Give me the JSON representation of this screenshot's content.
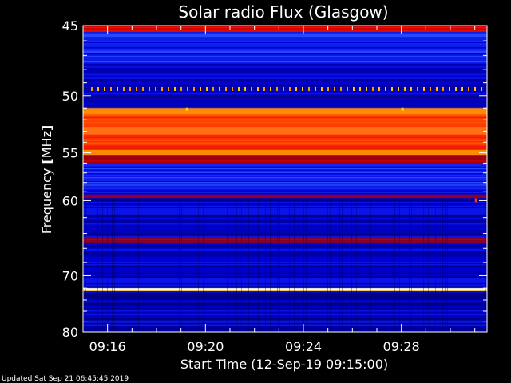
{
  "chart_data": {
    "type": "heatmap",
    "title": "Solar radio Flux (Glasgow)",
    "xlabel": "Start Time (12-Sep-19 09:15:00)",
    "ylabel_text": "Frequency ",
    "ylabel_unit": "MHz",
    "footer": "Updated Sat Sep 21 06:45:45 2019",
    "x_range_minutes": [
      "09:15:00",
      "09:31:30"
    ],
    "x_ticks": [
      "09:16",
      "09:20",
      "09:24",
      "09:28"
    ],
    "x_tick_minutes": [
      1,
      5,
      9,
      13
    ],
    "y_range_mhz": [
      45,
      80
    ],
    "y_ticks": [
      45,
      50,
      55,
      60,
      70,
      80
    ],
    "y_scale": "reciprocal",
    "colormap": [
      "#000078",
      "#0000e6",
      "#1e3cff",
      "#ff3c00",
      "#ff6a00",
      "#fffbcc"
    ],
    "frequency_bands": [
      {
        "from": 45.0,
        "to": 45.4,
        "level": "high"
      },
      {
        "from": 45.4,
        "to": 47.5,
        "level": "mid"
      },
      {
        "from": 47.5,
        "to": 49.2,
        "level": "low"
      },
      {
        "from": 49.2,
        "to": 49.7,
        "level": "spiky"
      },
      {
        "from": 49.7,
        "to": 51.0,
        "level": "low"
      },
      {
        "from": 51.0,
        "to": 55.2,
        "level": "very-high"
      },
      {
        "from": 55.2,
        "to": 56.0,
        "level": "high-dark"
      },
      {
        "from": 56.0,
        "to": 59.3,
        "level": "mid"
      },
      {
        "from": 59.3,
        "to": 59.7,
        "level": "high-dark"
      },
      {
        "from": 59.7,
        "to": 64.5,
        "level": "low"
      },
      {
        "from": 64.5,
        "to": 65.2,
        "level": "high-dark"
      },
      {
        "from": 65.2,
        "to": 72.0,
        "level": "low"
      },
      {
        "from": 72.0,
        "to": 72.5,
        "level": "peak"
      },
      {
        "from": 72.5,
        "to": 80.0,
        "level": "low"
      }
    ]
  }
}
